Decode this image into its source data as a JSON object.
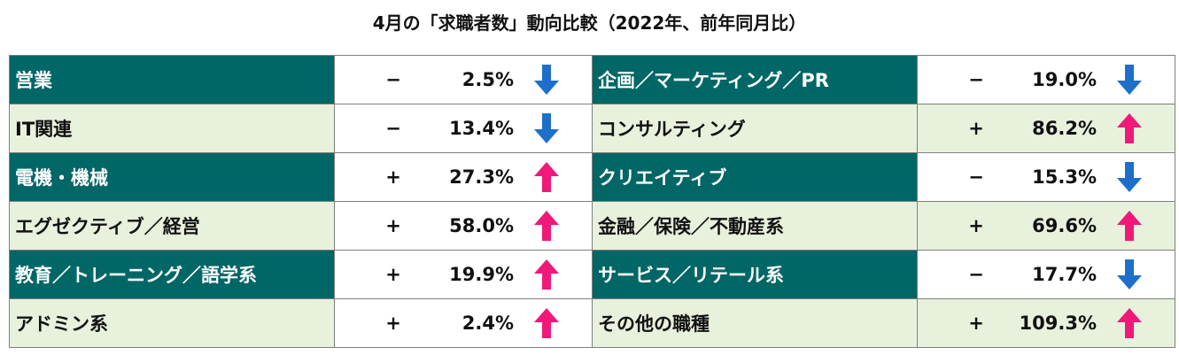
{
  "title": "4月の「求職者数」動向比較（2022年、前年同月比）",
  "colors": {
    "dark": "#006666",
    "light": "#e8f1dc",
    "down": "#1e6fc9",
    "up": "#f0197a"
  },
  "rows": [
    {
      "left": {
        "label": "営業",
        "sign": "−",
        "value": "2.5%",
        "direction": "down"
      },
      "right": {
        "label": "企画／マーケティング／PR",
        "sign": "−",
        "value": "19.0%",
        "direction": "down"
      }
    },
    {
      "left": {
        "label": "IT関連",
        "sign": "−",
        "value": "13.4%",
        "direction": "down"
      },
      "right": {
        "label": "コンサルティング",
        "sign": "+",
        "value": "86.2%",
        "direction": "up"
      }
    },
    {
      "left": {
        "label": "電機・機械",
        "sign": "+",
        "value": "27.3%",
        "direction": "up"
      },
      "right": {
        "label": "クリエイティブ",
        "sign": "−",
        "value": "15.3%",
        "direction": "down"
      }
    },
    {
      "left": {
        "label": "エグゼクティブ／経営",
        "sign": "+",
        "value": "58.0%",
        "direction": "up"
      },
      "right": {
        "label": "金融／保険／不動産系",
        "sign": "+",
        "value": "69.6%",
        "direction": "up"
      }
    },
    {
      "left": {
        "label": "教育／トレーニング／語学系",
        "sign": "+",
        "value": "19.9%",
        "direction": "up"
      },
      "right": {
        "label": "サービス／リテール系",
        "sign": "−",
        "value": "17.7%",
        "direction": "down"
      }
    },
    {
      "left": {
        "label": "アドミン系",
        "sign": "+",
        "value": "2.4%",
        "direction": "up"
      },
      "right": {
        "label": "その他の職種",
        "sign": "+",
        "value": "109.3%",
        "direction": "up"
      }
    }
  ]
}
